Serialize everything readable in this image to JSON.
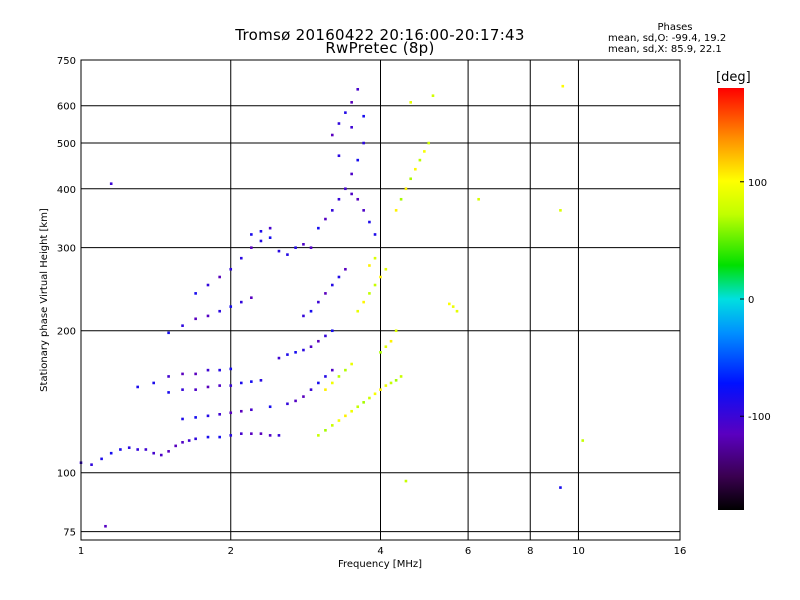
{
  "header": {
    "title_line1": "Tromsø 20160422 20:16:00-20:17:43",
    "title_line2": "RwPretec (8p)"
  },
  "phases": {
    "title": "Phases",
    "o_line": "mean, sd,O: -99.4, 19.2",
    "x_line": "mean, sd,X:  85.9, 22.1"
  },
  "colorbar": {
    "unit": "[deg]",
    "ticks": [
      {
        "value": 100,
        "label": "100"
      },
      {
        "value": 0,
        "label": "0"
      },
      {
        "value": -100,
        "label": "-100"
      }
    ],
    "range": [
      -180,
      180
    ]
  },
  "chart_data": {
    "type": "scatter",
    "xlabel": "Frequency [MHz]",
    "ylabel": "Stationary phase Virtual Height [km]",
    "xscale": "log",
    "yscale": "log",
    "xlim": [
      1,
      16
    ],
    "ylim": [
      72,
      750
    ],
    "xticks": [
      1,
      2,
      4,
      6,
      8,
      10,
      16
    ],
    "xtick_labels": [
      "1",
      "2",
      "4",
      "6",
      "8",
      "10",
      "16"
    ],
    "yticks": [
      75,
      100,
      200,
      300,
      400,
      500,
      600,
      750
    ],
    "ytick_labels": [
      "75",
      "100",
      "200",
      "300",
      "400",
      "500",
      "600",
      "750"
    ],
    "grid": true,
    "color_scale": "phase [deg], rainbow (-180 black/purple → 180 red)",
    "series": [
      {
        "name": "O",
        "phase_mean": -99.4,
        "phase_sd": 19.2,
        "points": [
          [
            1.0,
            105
          ],
          [
            1.05,
            104
          ],
          [
            1.1,
            107
          ],
          [
            1.15,
            110
          ],
          [
            1.2,
            112
          ],
          [
            1.25,
            113
          ],
          [
            1.3,
            112
          ],
          [
            1.35,
            112
          ],
          [
            1.4,
            110
          ],
          [
            1.45,
            109
          ],
          [
            1.5,
            111
          ],
          [
            1.55,
            114
          ],
          [
            1.6,
            116
          ],
          [
            1.65,
            117
          ],
          [
            1.7,
            118
          ],
          [
            1.8,
            119
          ],
          [
            1.9,
            119
          ],
          [
            2.0,
            120
          ],
          [
            2.1,
            121
          ],
          [
            2.2,
            121
          ],
          [
            2.3,
            121
          ],
          [
            2.4,
            120
          ],
          [
            2.5,
            120
          ],
          [
            1.5,
            148
          ],
          [
            1.6,
            150
          ],
          [
            1.7,
            150
          ],
          [
            1.8,
            152
          ],
          [
            1.9,
            153
          ],
          [
            2.0,
            153
          ],
          [
            2.1,
            155
          ],
          [
            2.2,
            156
          ],
          [
            2.3,
            157
          ],
          [
            1.3,
            152
          ],
          [
            1.4,
            155
          ],
          [
            1.5,
            160
          ],
          [
            1.6,
            162
          ],
          [
            1.7,
            162
          ],
          [
            1.8,
            165
          ],
          [
            1.9,
            165
          ],
          [
            2.0,
            166
          ],
          [
            1.6,
            130
          ],
          [
            1.7,
            131
          ],
          [
            1.8,
            132
          ],
          [
            1.9,
            133
          ],
          [
            2.0,
            134
          ],
          [
            2.1,
            135
          ],
          [
            2.2,
            136
          ],
          [
            2.4,
            138
          ],
          [
            1.5,
            198
          ],
          [
            1.6,
            205
          ],
          [
            1.7,
            212
          ],
          [
            1.8,
            215
          ],
          [
            1.9,
            220
          ],
          [
            2.0,
            225
          ],
          [
            2.1,
            230
          ],
          [
            2.2,
            235
          ],
          [
            1.7,
            240
          ],
          [
            1.8,
            250
          ],
          [
            1.9,
            260
          ],
          [
            2.0,
            270
          ],
          [
            2.1,
            285
          ],
          [
            2.2,
            300
          ],
          [
            2.3,
            310
          ],
          [
            2.4,
            315
          ],
          [
            2.2,
            320
          ],
          [
            2.3,
            325
          ],
          [
            2.4,
            330
          ],
          [
            2.5,
            295
          ],
          [
            2.6,
            290
          ],
          [
            2.7,
            300
          ],
          [
            2.8,
            305
          ],
          [
            2.9,
            300
          ],
          [
            2.5,
            175
          ],
          [
            2.6,
            178
          ],
          [
            2.7,
            180
          ],
          [
            2.8,
            182
          ],
          [
            2.9,
            185
          ],
          [
            3.0,
            190
          ],
          [
            3.1,
            195
          ],
          [
            3.2,
            200
          ],
          [
            2.6,
            140
          ],
          [
            2.7,
            142
          ],
          [
            2.8,
            145
          ],
          [
            2.9,
            150
          ],
          [
            3.0,
            155
          ],
          [
            3.1,
            160
          ],
          [
            3.2,
            165
          ],
          [
            2.8,
            215
          ],
          [
            2.9,
            220
          ],
          [
            3.0,
            230
          ],
          [
            3.1,
            240
          ],
          [
            3.2,
            250
          ],
          [
            3.3,
            260
          ],
          [
            3.4,
            270
          ],
          [
            3.0,
            330
          ],
          [
            3.1,
            345
          ],
          [
            3.2,
            360
          ],
          [
            3.3,
            380
          ],
          [
            3.4,
            400
          ],
          [
            3.5,
            430
          ],
          [
            3.6,
            460
          ],
          [
            3.7,
            500
          ],
          [
            3.2,
            520
          ],
          [
            3.3,
            550
          ],
          [
            3.4,
            580
          ],
          [
            3.5,
            610
          ],
          [
            3.6,
            650
          ],
          [
            3.3,
            470
          ],
          [
            3.5,
            540
          ],
          [
            3.7,
            570
          ],
          [
            3.5,
            390
          ],
          [
            3.6,
            380
          ],
          [
            3.7,
            360
          ],
          [
            3.8,
            340
          ],
          [
            3.9,
            320
          ],
          [
            1.12,
            77
          ],
          [
            1.15,
            410
          ],
          [
            9.2,
            93
          ]
        ]
      },
      {
        "name": "X",
        "phase_mean": 85.9,
        "phase_sd": 22.1,
        "points": [
          [
            3.0,
            120
          ],
          [
            3.1,
            123
          ],
          [
            3.2,
            126
          ],
          [
            3.3,
            129
          ],
          [
            3.4,
            132
          ],
          [
            3.5,
            135
          ],
          [
            3.6,
            138
          ],
          [
            3.7,
            141
          ],
          [
            3.8,
            144
          ],
          [
            3.9,
            147
          ],
          [
            4.0,
            150
          ],
          [
            4.1,
            153
          ],
          [
            4.2,
            155
          ],
          [
            4.3,
            157
          ],
          [
            4.4,
            160
          ],
          [
            3.1,
            150
          ],
          [
            3.2,
            155
          ],
          [
            3.3,
            160
          ],
          [
            3.4,
            165
          ],
          [
            3.5,
            170
          ],
          [
            3.6,
            220
          ],
          [
            3.7,
            230
          ],
          [
            3.8,
            240
          ],
          [
            3.9,
            250
          ],
          [
            4.0,
            260
          ],
          [
            4.1,
            270
          ],
          [
            3.8,
            275
          ],
          [
            3.9,
            285
          ],
          [
            4.0,
            180
          ],
          [
            4.1,
            185
          ],
          [
            4.2,
            190
          ],
          [
            4.3,
            200
          ],
          [
            4.3,
            360
          ],
          [
            4.4,
            380
          ],
          [
            4.5,
            400
          ],
          [
            4.6,
            420
          ],
          [
            4.7,
            440
          ],
          [
            4.8,
            460
          ],
          [
            4.9,
            480
          ],
          [
            5.0,
            500
          ],
          [
            5.7,
            220
          ],
          [
            5.6,
            225
          ],
          [
            5.5,
            228
          ],
          [
            4.5,
            96
          ],
          [
            9.2,
            360
          ],
          [
            10.2,
            117
          ],
          [
            6.3,
            380
          ],
          [
            4.6,
            610
          ],
          [
            5.1,
            630
          ],
          [
            9.3,
            660
          ]
        ]
      }
    ]
  }
}
